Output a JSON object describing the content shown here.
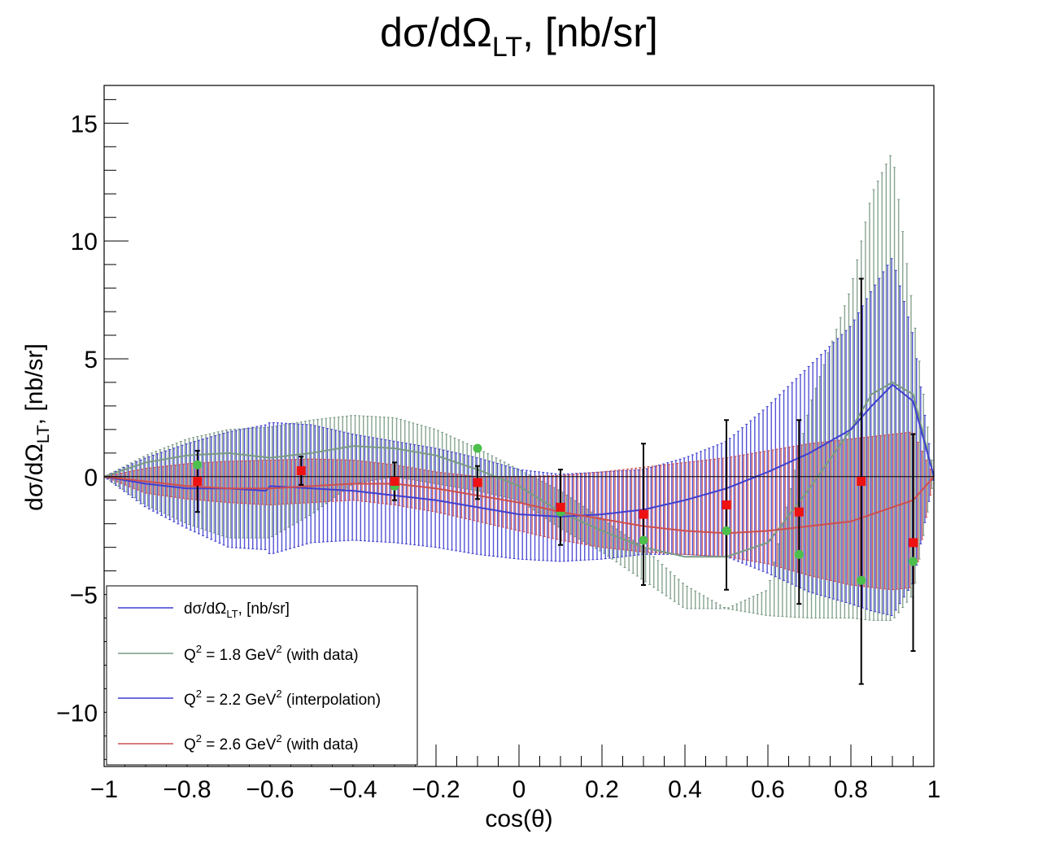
{
  "chart_data": {
    "type": "line",
    "title": "dσ/dΩ_LT, [nb/sr]",
    "title_main": "dσ/dΩ",
    "title_sub": "LT",
    "title_tail": ", [nb/sr]",
    "xlabel": "cos(θ)",
    "ylabel_main": "dσ/dΩ",
    "ylabel_sub": "LT",
    "ylabel_tail": ", [nb/sr]",
    "xlim": [
      -1,
      1
    ],
    "ylim": [
      -12.3,
      16.6
    ],
    "xticks": [
      -1,
      -0.8,
      -0.6,
      -0.4,
      -0.2,
      0,
      0.2,
      0.4,
      0.6,
      0.8,
      1
    ],
    "xtick_labels": [
      "−1",
      "−0.8",
      "−0.6",
      "−0.4",
      "−0.2",
      "0",
      "0.2",
      "0.4",
      "0.6",
      "0.8",
      "1"
    ],
    "yticks": [
      -10,
      -5,
      0,
      5,
      10,
      15
    ],
    "ytick_labels": [
      "−10",
      "−5",
      "0",
      "5",
      "10",
      "15"
    ],
    "legend": {
      "position": "bottom-left",
      "entries": [
        {
          "main": "dσ/dΩ",
          "sub": "LT",
          "tail": ", [nb/sr]",
          "color": "#3f3fd0"
        },
        {
          "main": "Q",
          "sup": "2",
          "tail": " = 1.8 GeV",
          "sup2": "2",
          "tail2": " (with data)",
          "color": "#7a9a84"
        },
        {
          "main": "Q",
          "sup": "2",
          "tail": " = 2.2 GeV",
          "sup2": "2",
          "tail2": " (interpolation)",
          "color": "#3f3fd0"
        },
        {
          "main": "Q",
          "sup": "2",
          "tail": " = 2.6 GeV",
          "sup2": "2",
          "tail2": " (with data)",
          "color": "#cc4f4f"
        }
      ]
    },
    "series": [
      {
        "name": "Q2 = 1.8 GeV2 (with data)",
        "color": "#7a9a84",
        "x": [
          -1,
          -0.9,
          -0.8,
          -0.7,
          -0.6,
          -0.5,
          -0.4,
          -0.3,
          -0.2,
          -0.1,
          0,
          0.1,
          0.2,
          0.3,
          0.4,
          0.5,
          0.6,
          0.7,
          0.8,
          0.85,
          0.9,
          0.95,
          1
        ],
        "upper": [
          0,
          0.9,
          1.6,
          2.0,
          2.1,
          2.4,
          2.6,
          2.5,
          2.0,
          1.2,
          0.3,
          -0.6,
          -1.8,
          -3.0,
          -4.6,
          -5.6,
          -4.8,
          3.0,
          8.0,
          12.0,
          13.8,
          7.0,
          0
        ],
        "central": [
          0,
          0.6,
          0.9,
          1.0,
          0.8,
          1.0,
          1.3,
          1.2,
          0.9,
          0.3,
          -0.4,
          -1.5,
          -2.3,
          -3.0,
          -3.4,
          -3.4,
          -2.8,
          -0.5,
          2.0,
          3.5,
          4.0,
          3.5,
          0
        ],
        "lower": [
          0,
          -1.2,
          -2.0,
          -2.6,
          -2.6,
          -1.6,
          -0.3,
          0.0,
          -0.3,
          -0.6,
          -1.0,
          -2.2,
          -3.2,
          -4.4,
          -5.6,
          -5.6,
          -5.9,
          -6.0,
          -6.0,
          -6.1,
          -6.1,
          -5.0,
          0
        ]
      },
      {
        "name": "Q2 = 2.2 GeV2 (interpolation)",
        "color": "#3f3fd0",
        "x": [
          -1,
          -0.9,
          -0.8,
          -0.7,
          -0.61,
          -0.6,
          -0.5,
          -0.4,
          -0.3,
          -0.2,
          -0.1,
          0,
          0.1,
          0.2,
          0.3,
          0.4,
          0.5,
          0.6,
          0.7,
          0.8,
          0.85,
          0.9,
          0.95,
          1
        ],
        "upper": [
          0,
          0.8,
          1.4,
          1.9,
          2.2,
          2.3,
          2.2,
          1.8,
          1.5,
          1.2,
          0.8,
          0.3,
          0.1,
          0.2,
          0.3,
          0.8,
          1.5,
          3.0,
          4.7,
          6.4,
          7.9,
          9.3,
          6.0,
          0
        ],
        "central": [
          0,
          -0.3,
          -0.5,
          -0.5,
          -0.6,
          -0.4,
          -0.5,
          -0.6,
          -0.8,
          -1.0,
          -1.3,
          -1.6,
          -1.7,
          -1.6,
          -1.4,
          -1.0,
          -0.5,
          0.2,
          1.0,
          2.0,
          3.0,
          3.9,
          3.2,
          0
        ],
        "lower": [
          0,
          -1.3,
          -2.2,
          -3.0,
          -3.1,
          -3.3,
          -2.8,
          -2.7,
          -2.8,
          -3.0,
          -3.3,
          -3.5,
          -3.6,
          -3.5,
          -3.3,
          -3.3,
          -3.4,
          -4.1,
          -4.9,
          -5.4,
          -5.7,
          -5.9,
          -4.5,
          0
        ]
      },
      {
        "name": "Q2 = 2.6 GeV2 (with data)",
        "color": "#cc4f4f",
        "x": [
          -1,
          -0.9,
          -0.8,
          -0.7,
          -0.6,
          -0.5,
          -0.4,
          -0.3,
          -0.2,
          -0.1,
          0,
          0.1,
          0.2,
          0.3,
          0.4,
          0.5,
          0.6,
          0.7,
          0.8,
          0.85,
          0.9,
          0.95,
          1
        ],
        "upper": [
          0,
          0.35,
          0.55,
          0.65,
          0.7,
          0.75,
          0.7,
          0.5,
          0.2,
          0.0,
          0.0,
          0.05,
          0.2,
          0.4,
          0.6,
          0.8,
          1.1,
          1.4,
          1.6,
          1.7,
          1.8,
          1.9,
          0
        ],
        "central": [
          0,
          -0.2,
          -0.4,
          -0.5,
          -0.5,
          -0.4,
          -0.3,
          -0.3,
          -0.5,
          -0.8,
          -1.1,
          -1.5,
          -1.8,
          -2.1,
          -2.3,
          -2.4,
          -2.3,
          -2.1,
          -1.9,
          -1.6,
          -1.3,
          -1.0,
          0
        ],
        "lower": [
          0,
          -0.7,
          -0.95,
          -1.1,
          -1.2,
          -1.1,
          -1.0,
          -1.2,
          -1.5,
          -1.9,
          -2.3,
          -2.7,
          -3.0,
          -3.2,
          -3.3,
          -3.4,
          -3.7,
          -4.2,
          -4.6,
          -4.7,
          -4.8,
          -4.7,
          0
        ]
      }
    ],
    "points_green": {
      "name": "data Q2 = 1.8",
      "color": "#4cbf4c",
      "x": [
        -0.775,
        -0.3,
        -0.1,
        0.1,
        0.3,
        0.5,
        0.675,
        0.825,
        0.95
      ],
      "y": [
        0.5,
        -0.4,
        1.2,
        -1.5,
        -2.7,
        -2.3,
        -3.3,
        -4.4,
        -3.6
      ]
    },
    "points_red": {
      "name": "data Q2 = 2.6",
      "color": "#ee1111",
      "x": [
        -0.775,
        -0.525,
        -0.3,
        -0.1,
        0.1,
        0.3,
        0.5,
        0.675,
        0.825,
        0.95
      ],
      "y": [
        -0.2,
        0.25,
        -0.2,
        -0.25,
        -1.3,
        -1.6,
        -1.2,
        -1.5,
        -0.2,
        -2.8
      ],
      "err": [
        1.3,
        0.6,
        0.8,
        0.7,
        1.6,
        3.0,
        3.6,
        3.9,
        8.6,
        4.6
      ]
    }
  }
}
